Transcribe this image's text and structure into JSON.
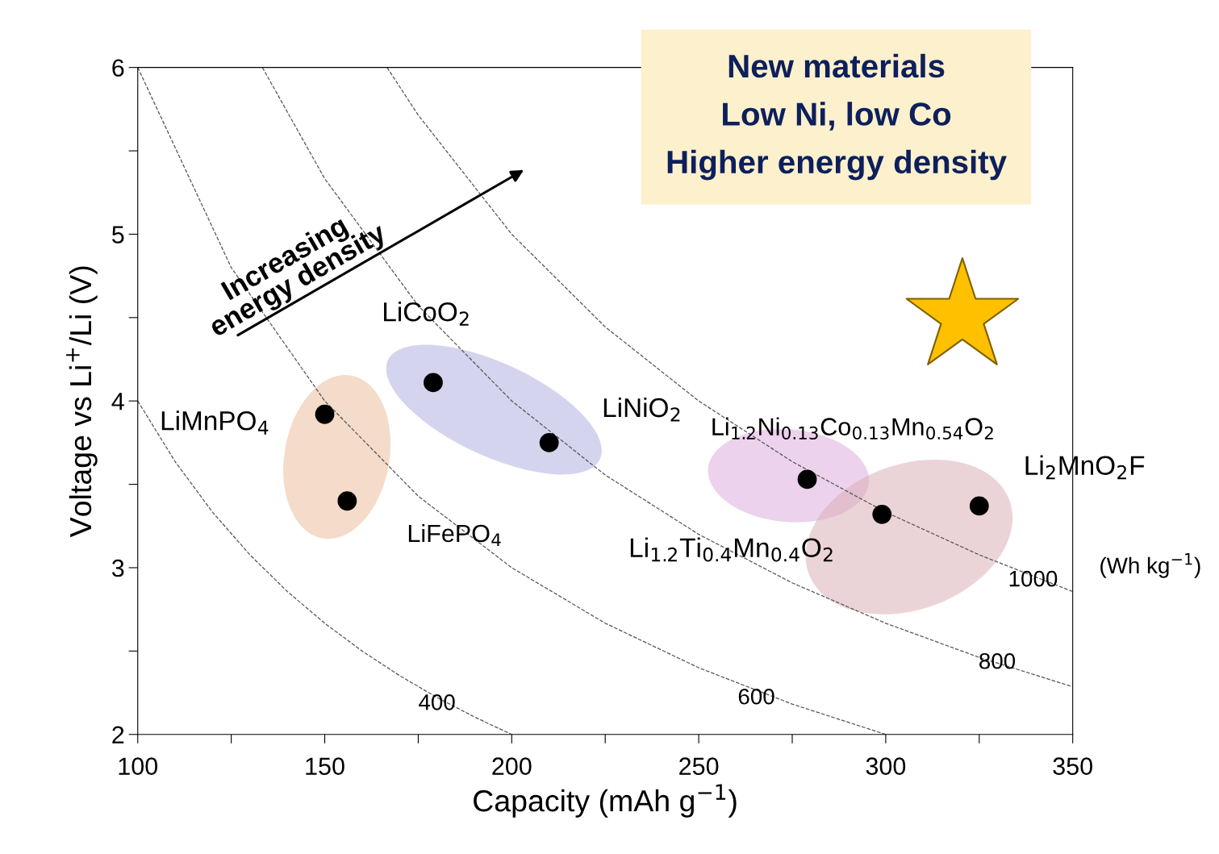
{
  "chart_data": {
    "type": "scatter",
    "xlabel": "Capacity (mAh g$^{−1}$)",
    "ylabel": "Voltage vs Li$^{+}$/Li (V)",
    "xlim": [
      100,
      350
    ],
    "ylim": [
      2,
      6
    ],
    "xticks": [
      100,
      {
        "value": 125,
        "label": null
      },
      150,
      {
        "value": 175,
        "label": null
      },
      200,
      {
        "value": 225,
        "label": null
      },
      250,
      {
        "value": 275,
        "label": null
      },
      300,
      {
        "value": 325,
        "label": null
      },
      350
    ],
    "yticks": [
      2,
      {
        "value": 2.5,
        "label": null
      },
      3,
      {
        "value": 3.5,
        "label": null
      },
      4,
      {
        "value": 4.5,
        "label": null
      },
      5,
      {
        "value": 5.5,
        "label": null
      },
      6
    ],
    "grid": false,
    "legend": false,
    "series": [
      {
        "color": "#000000",
        "marker": "circle",
        "x": [
          150,
          156,
          179,
          210,
          279,
          299,
          325
        ],
        "values": [
          3.92,
          3.4,
          4.11,
          3.75,
          3.53,
          3.32,
          3.37
        ]
      },
      {
        "type": "line",
        "color": "#555555",
        "line_style": "dashed",
        "marker": "none",
        "x": [
          100,
          110,
          120,
          130,
          140,
          150,
          160,
          170,
          180,
          190,
          200
        ],
        "values": [
          4,
          3.636,
          3.333,
          3.077,
          2.857,
          2.667,
          2.5,
          2.353,
          2.222,
          2.105,
          2
        ]
      },
      {
        "type": "line",
        "color": "#555555",
        "line_style": "dashed",
        "marker": "none",
        "x": [
          100,
          125,
          150,
          175,
          200,
          225,
          250,
          275,
          300
        ],
        "values": [
          6,
          4.8,
          4,
          3.429,
          3,
          2.667,
          2.4,
          2.182,
          2
        ]
      },
      {
        "type": "line",
        "color": "#555555",
        "line_style": "dashed",
        "marker": "none",
        "x": [
          133.33,
          150,
          175,
          200,
          225,
          250,
          275,
          300,
          325,
          350
        ],
        "values": [
          6,
          5.333,
          4.571,
          4,
          3.556,
          3.2,
          2.909,
          2.667,
          2.462,
          2.286
        ]
      },
      {
        "type": "line",
        "color": "#555555",
        "line_style": "dashed",
        "marker": "none",
        "x": [
          166.67,
          175,
          200,
          225,
          250,
          275,
          300,
          325,
          350
        ],
        "values": [
          6,
          5.714,
          5,
          4.444,
          4,
          3.636,
          3.333,
          3.077,
          2.857
        ]
      }
    ],
    "annotations": [
      {
        "text": "LiMnPO$_{4}$",
        "x": 150,
        "y": 3.92
      },
      {
        "text": "LiFePO$_{4}$",
        "x": 156,
        "y": 3.4
      },
      {
        "text": "LiCoO$_{2}$",
        "x": 179,
        "y": 4.11
      },
      {
        "text": "LiNiO$_{2}$",
        "x": 210,
        "y": 3.75
      },
      "Li$_{1.2}$Ni$_{0.13}$Co$_{0.13}$Mn$_{0.54}$O$_{2}$",
      {
        "text": "Li$_{1.2}$Ti$_{0.4}$Mn$_{0.4}$O$_{2}$",
        "x": 299,
        "y": 3.32
      },
      {
        "text": "Li$_{2}$MnO$_{2}$F",
        "x": 325,
        "y": 3.37
      },
      {
        "text": "400",
        "x": 180,
        "y": 2.222
      },
      {
        "text": "600",
        "x": 275,
        "y": 2.182
      },
      {
        "text": "800",
        "x": 325,
        "y": 2.462
      },
      {
        "text": "1000",
        "x": 325,
        "y": 3.077
      },
      "(Wh kg$^{−1}$)",
      "Increasing\nenergy density",
      "New materials\nLow Ni, low Co\nHigher energy density"
    ]
  }
}
